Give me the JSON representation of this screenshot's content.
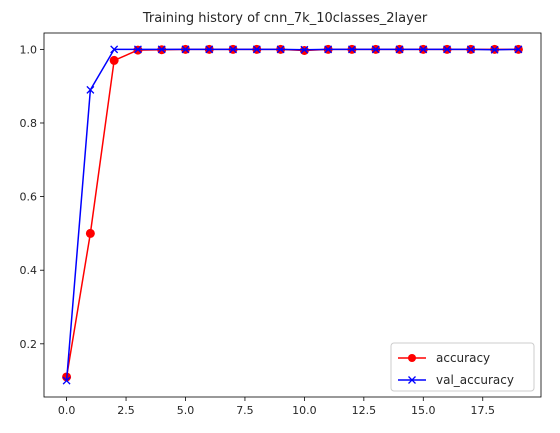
{
  "chart_data": {
    "type": "line",
    "title": "Training history of cnn_7k_10classes_2layer",
    "xlabel": "",
    "ylabel": "",
    "xlim": [
      -0.95,
      19.95
    ],
    "ylim": [
      0.0555,
      1.0445
    ],
    "xticks": [
      "0.0",
      "2.5",
      "5.0",
      "7.5",
      "10.0",
      "12.5",
      "15.0",
      "17.5"
    ],
    "yticks": [
      "0.2",
      "0.4",
      "0.6",
      "0.8",
      "1.0"
    ],
    "grid": false,
    "legend_position": "lower-right",
    "series": [
      {
        "name": "accuracy",
        "color": "#ff0000",
        "marker": "circle",
        "x": [
          0,
          1,
          2,
          3,
          4,
          5,
          6,
          7,
          8,
          9,
          10,
          11,
          12,
          13,
          14,
          15,
          16,
          17,
          18,
          19
        ],
        "values": [
          0.11,
          0.5,
          0.97,
          0.998,
          0.999,
          1.0,
          1.0,
          1.0,
          1.0,
          1.0,
          0.997,
          1.0,
          1.0,
          1.0,
          1.0,
          1.0,
          1.0,
          1.0,
          1.0,
          1.0
        ]
      },
      {
        "name": "val_accuracy",
        "color": "#0000ff",
        "marker": "x",
        "x": [
          0,
          1,
          2,
          3,
          4,
          5,
          6,
          7,
          8,
          9,
          10,
          11,
          12,
          13,
          14,
          15,
          16,
          17,
          18,
          19
        ],
        "values": [
          0.1,
          0.89,
          1.0,
          1.0,
          1.0,
          1.0,
          1.0,
          1.0,
          1.0,
          1.0,
          0.999,
          1.0,
          1.0,
          1.0,
          1.0,
          1.0,
          1.0,
          1.0,
          0.999,
          1.0
        ]
      }
    ]
  }
}
